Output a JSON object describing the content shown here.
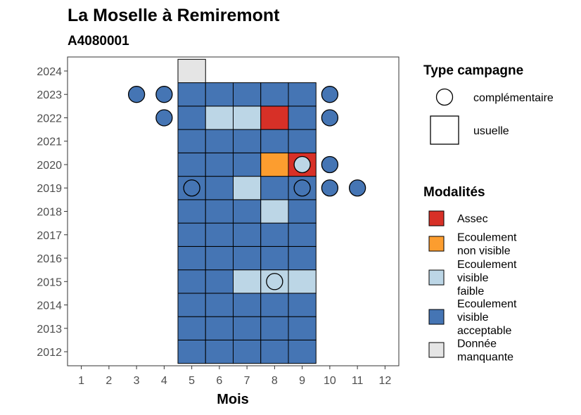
{
  "header": {
    "title": "La Moselle à Remiremont",
    "subtitle": "A4080001"
  },
  "chart_data": {
    "type": "heatmap",
    "title": "La Moselle à Remiremont",
    "subtitle": "A4080001",
    "xlabel": "Mois",
    "ylabel": "",
    "x_ticks": [
      1,
      2,
      3,
      4,
      5,
      6,
      7,
      8,
      9,
      10,
      11,
      12
    ],
    "y_ticks": [
      2012,
      2013,
      2014,
      2015,
      2016,
      2017,
      2018,
      2019,
      2020,
      2021,
      2022,
      2023,
      2024
    ],
    "xlim": [
      0.5,
      12.5
    ],
    "ylim": [
      2011.4,
      2024.6
    ],
    "grid": false,
    "modalities": [
      {
        "key": "assec",
        "label_lines": [
          "Assec"
        ],
        "color": "#d73027"
      },
      {
        "key": "ecoulement_non_visible",
        "label_lines": [
          "Ecoulement",
          "non visible"
        ],
        "color": "#fc9d2f"
      },
      {
        "key": "ecoulement_visible_faible",
        "label_lines": [
          "Ecoulement",
          "visible",
          "faible"
        ],
        "color": "#bcd6e6"
      },
      {
        "key": "ecoulement_visible_acceptable",
        "label_lines": [
          "Ecoulement",
          "visible",
          "acceptable"
        ],
        "color": "#4575b4"
      },
      {
        "key": "donnee_manquante",
        "label_lines": [
          "Donnée",
          "manquante"
        ],
        "color": "#e5e5e5"
      }
    ],
    "campaign_types": [
      {
        "key": "complementaire",
        "label": "complémentaire",
        "shape": "circle"
      },
      {
        "key": "usuelle",
        "label": "usuelle",
        "shape": "square"
      }
    ],
    "legend_titles": {
      "campaign": "Type campagne",
      "modality": "Modalités"
    },
    "legend_position": "right",
    "usuelle": [
      {
        "year": 2012,
        "months": [
          "ecoulement_visible_acceptable",
          "ecoulement_visible_acceptable",
          "ecoulement_visible_acceptable",
          "ecoulement_visible_acceptable",
          "ecoulement_visible_acceptable"
        ],
        "start_month": 5
      },
      {
        "year": 2013,
        "months": [
          "ecoulement_visible_acceptable",
          "ecoulement_visible_acceptable",
          "ecoulement_visible_acceptable",
          "ecoulement_visible_acceptable",
          "ecoulement_visible_acceptable"
        ],
        "start_month": 5
      },
      {
        "year": 2014,
        "months": [
          "ecoulement_visible_acceptable",
          "ecoulement_visible_acceptable",
          "ecoulement_visible_acceptable",
          "ecoulement_visible_acceptable",
          "ecoulement_visible_acceptable"
        ],
        "start_month": 5
      },
      {
        "year": 2015,
        "months": [
          "ecoulement_visible_acceptable",
          "ecoulement_visible_acceptable",
          "ecoulement_visible_faible",
          "ecoulement_visible_faible",
          "ecoulement_visible_faible"
        ],
        "start_month": 5
      },
      {
        "year": 2016,
        "months": [
          "ecoulement_visible_acceptable",
          "ecoulement_visible_acceptable",
          "ecoulement_visible_acceptable",
          "ecoulement_visible_acceptable",
          "ecoulement_visible_acceptable"
        ],
        "start_month": 5
      },
      {
        "year": 2017,
        "months": [
          "ecoulement_visible_acceptable",
          "ecoulement_visible_acceptable",
          "ecoulement_visible_acceptable",
          "ecoulement_visible_acceptable",
          "ecoulement_visible_acceptable"
        ],
        "start_month": 5
      },
      {
        "year": 2018,
        "months": [
          "ecoulement_visible_acceptable",
          "ecoulement_visible_acceptable",
          "ecoulement_visible_acceptable",
          "ecoulement_visible_faible",
          "ecoulement_visible_acceptable"
        ],
        "start_month": 5
      },
      {
        "year": 2019,
        "months": [
          "ecoulement_visible_acceptable",
          "ecoulement_visible_acceptable",
          "ecoulement_visible_faible",
          "ecoulement_visible_acceptable",
          "ecoulement_visible_acceptable"
        ],
        "start_month": 5
      },
      {
        "year": 2020,
        "months": [
          "ecoulement_visible_acceptable",
          "ecoulement_visible_acceptable",
          "ecoulement_visible_acceptable",
          "ecoulement_non_visible",
          "assec"
        ],
        "start_month": 5
      },
      {
        "year": 2021,
        "months": [
          "ecoulement_visible_acceptable",
          "ecoulement_visible_acceptable",
          "ecoulement_visible_acceptable",
          "ecoulement_visible_acceptable",
          "ecoulement_visible_acceptable"
        ],
        "start_month": 5
      },
      {
        "year": 2022,
        "months": [
          "ecoulement_visible_acceptable",
          "ecoulement_visible_faible",
          "ecoulement_visible_faible",
          "assec",
          "ecoulement_visible_acceptable"
        ],
        "start_month": 5
      },
      {
        "year": 2023,
        "months": [
          "ecoulement_visible_acceptable",
          "ecoulement_visible_acceptable",
          "ecoulement_visible_acceptable",
          "ecoulement_visible_acceptable",
          "ecoulement_visible_acceptable"
        ],
        "start_month": 5
      },
      {
        "year": 2024,
        "months": [
          "donnee_manquante"
        ],
        "start_month": 5
      }
    ],
    "complementaire": [
      {
        "year": 2023,
        "month": 3,
        "modality": "ecoulement_visible_acceptable"
      },
      {
        "year": 2023,
        "month": 4,
        "modality": "ecoulement_visible_acceptable"
      },
      {
        "year": 2023,
        "month": 10,
        "modality": "ecoulement_visible_acceptable"
      },
      {
        "year": 2022,
        "month": 4,
        "modality": "ecoulement_visible_acceptable"
      },
      {
        "year": 2022,
        "month": 10,
        "modality": "ecoulement_visible_acceptable"
      },
      {
        "year": 2020,
        "month": 9,
        "modality": "ecoulement_visible_faible"
      },
      {
        "year": 2020,
        "month": 10,
        "modality": "ecoulement_visible_acceptable"
      },
      {
        "year": 2019,
        "month": 5,
        "modality": "ecoulement_visible_acceptable"
      },
      {
        "year": 2019,
        "month": 9,
        "modality": "ecoulement_visible_acceptable"
      },
      {
        "year": 2019,
        "month": 10,
        "modality": "ecoulement_visible_acceptable"
      },
      {
        "year": 2019,
        "month": 11,
        "modality": "ecoulement_visible_acceptable"
      },
      {
        "year": 2015,
        "month": 8,
        "modality": "ecoulement_visible_faible"
      }
    ]
  }
}
